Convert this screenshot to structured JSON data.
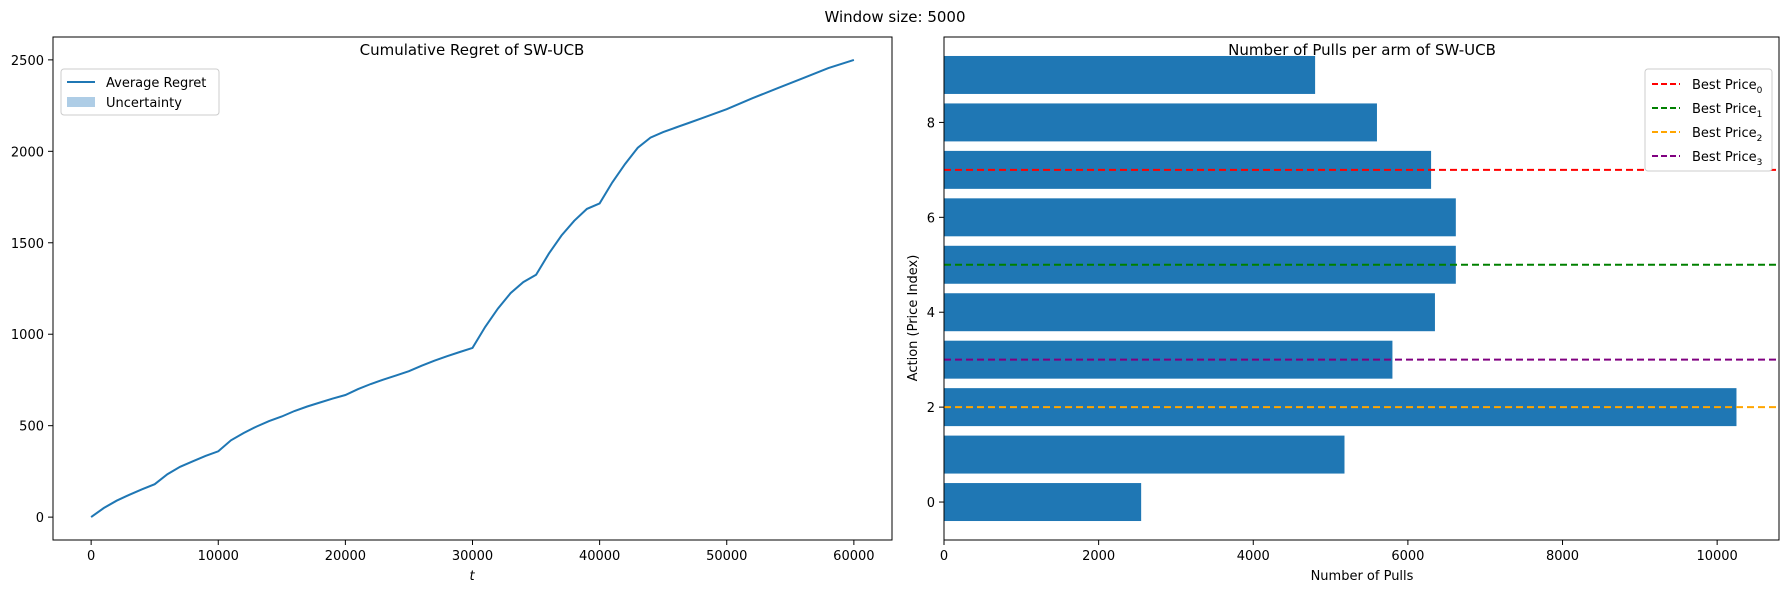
{
  "suptitle": "Window size: 5000",
  "chart_data": [
    {
      "type": "line",
      "title": "Cumulative Regret of SW-UCB",
      "xlabel": "t",
      "ylabel": "",
      "xlim": [
        -3000,
        63000
      ],
      "ylim": [
        -125,
        2625
      ],
      "xticks": [
        0,
        10000,
        20000,
        30000,
        40000,
        50000,
        60000
      ],
      "yticks": [
        0,
        500,
        1000,
        1500,
        2000,
        2500
      ],
      "grid": false,
      "legend_position": "top-left",
      "legend": [
        "Average Regret",
        "Uncertainty"
      ],
      "colors": {
        "line": "#1f77b4",
        "band": "#aecde6"
      },
      "series": [
        {
          "name": "Average Regret",
          "x": [
            0,
            1000,
            2000,
            3000,
            4000,
            5000,
            6000,
            7000,
            8000,
            9000,
            10000,
            11000,
            12000,
            13000,
            14000,
            15000,
            16000,
            17000,
            18000,
            19000,
            20000,
            21000,
            22000,
            23000,
            24000,
            25000,
            26000,
            27000,
            28000,
            29000,
            30000,
            31000,
            32000,
            33000,
            34000,
            35000,
            36000,
            37000,
            38000,
            39000,
            40000,
            41000,
            42000,
            43000,
            44000,
            45000,
            46000,
            47000,
            48000,
            49000,
            50000,
            52000,
            54000,
            56000,
            58000,
            60000
          ],
          "y": [
            0,
            50,
            90,
            122,
            152,
            180,
            235,
            275,
            305,
            335,
            360,
            420,
            460,
            495,
            525,
            550,
            580,
            605,
            627,
            648,
            668,
            700,
            728,
            752,
            775,
            798,
            828,
            855,
            880,
            903,
            925,
            1040,
            1140,
            1225,
            1285,
            1325,
            1440,
            1540,
            1620,
            1685,
            1715,
            1830,
            1930,
            2020,
            2075,
            2105,
            2130,
            2155,
            2180,
            2205,
            2230,
            2290,
            2345,
            2400,
            2455,
            2500
          ]
        }
      ]
    },
    {
      "type": "bar",
      "orientation": "horizontal",
      "title": "Number of Pulls per arm of SW-UCB",
      "xlabel": "Number of Pulls",
      "ylabel": "Action (Price Index)",
      "xlim": [
        0,
        10800
      ],
      "ylim": [
        -0.8,
        9.8
      ],
      "xticks": [
        0,
        2000,
        4000,
        6000,
        8000,
        10000
      ],
      "yticks": [
        0,
        2,
        4,
        6,
        8
      ],
      "grid": false,
      "legend_position": "top-right",
      "colors": {
        "bar": "#1f77b4"
      },
      "categories": [
        0,
        1,
        2,
        3,
        4,
        5,
        6,
        7,
        8,
        9
      ],
      "values": [
        2550,
        5180,
        10250,
        5800,
        6350,
        6620,
        6620,
        6300,
        5600,
        4800
      ],
      "reference_lines": [
        {
          "label": "Best Price",
          "subscript": "0",
          "y": 7,
          "color": "#ff0000"
        },
        {
          "label": "Best Price",
          "subscript": "1",
          "y": 5,
          "color": "#008000"
        },
        {
          "label": "Best Price",
          "subscript": "2",
          "y": 2,
          "color": "#ffa500"
        },
        {
          "label": "Best Price",
          "subscript": "3",
          "y": 3,
          "color": "#800080"
        }
      ]
    }
  ]
}
